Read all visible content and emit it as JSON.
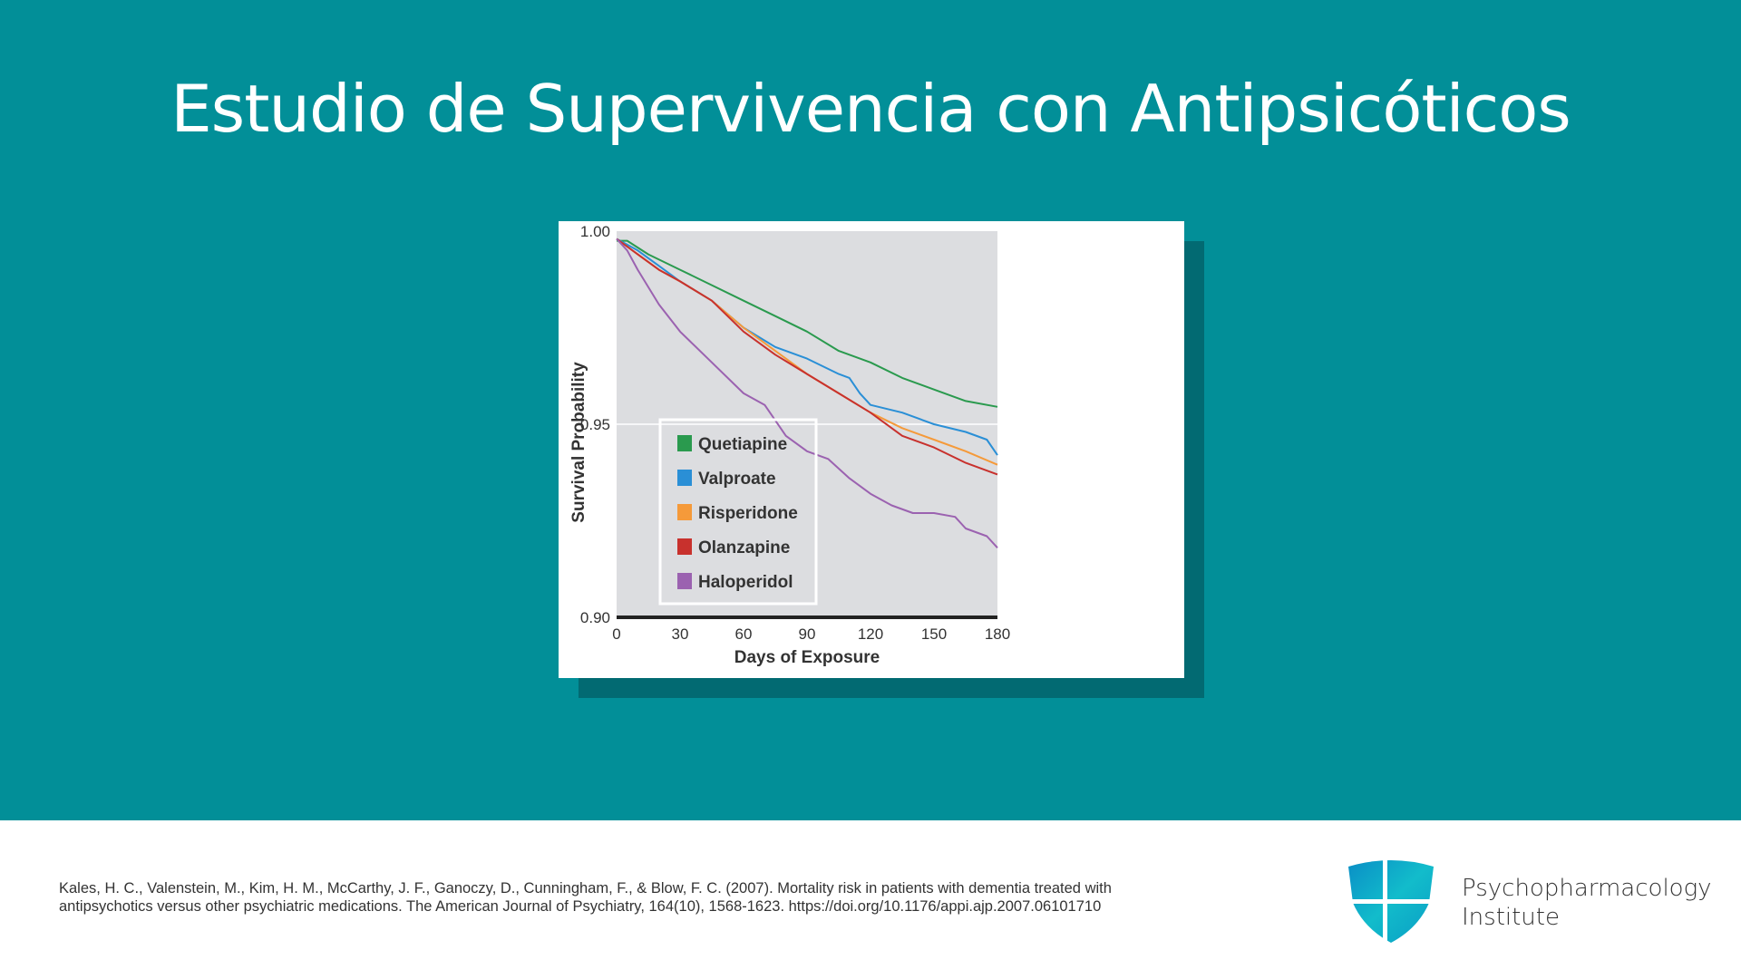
{
  "title": "Estudio de Supervivencia con Antipsicóticos",
  "chart_data": {
    "type": "line",
    "title": "",
    "xlabel": "Days of Exposure",
    "ylabel": "Survival Probability",
    "xlim": [
      0,
      180
    ],
    "ylim": [
      0.9,
      1.0
    ],
    "xticks": [
      "0",
      "30",
      "60",
      "90",
      "120",
      "150",
      "180"
    ],
    "yticks": [
      "1.00",
      "0.95",
      "0.90"
    ],
    "legend_position": "bottom-left",
    "series": [
      {
        "name": "Quetiapine",
        "color": "#2a9a4e",
        "points": [
          [
            0,
            0.9975
          ],
          [
            5,
            0.9975
          ],
          [
            15,
            0.994
          ],
          [
            30,
            0.99
          ],
          [
            45,
            0.986
          ],
          [
            60,
            0.982
          ],
          [
            75,
            0.978
          ],
          [
            90,
            0.974
          ],
          [
            105,
            0.969
          ],
          [
            120,
            0.966
          ],
          [
            135,
            0.962
          ],
          [
            150,
            0.959
          ],
          [
            165,
            0.956
          ],
          [
            180,
            0.9545
          ]
        ]
      },
      {
        "name": "Valproate",
        "color": "#2a8fd6",
        "points": [
          [
            0,
            0.998
          ],
          [
            10,
            0.995
          ],
          [
            20,
            0.991
          ],
          [
            30,
            0.987
          ],
          [
            45,
            0.982
          ],
          [
            60,
            0.975
          ],
          [
            75,
            0.97
          ],
          [
            90,
            0.967
          ],
          [
            105,
            0.963
          ],
          [
            110,
            0.962
          ],
          [
            115,
            0.958
          ],
          [
            120,
            0.955
          ],
          [
            135,
            0.953
          ],
          [
            150,
            0.95
          ],
          [
            165,
            0.948
          ],
          [
            175,
            0.946
          ],
          [
            180,
            0.942
          ]
        ]
      },
      {
        "name": "Risperidone",
        "color": "#f59a3a",
        "points": [
          [
            0,
            0.998
          ],
          [
            10,
            0.994
          ],
          [
            20,
            0.99
          ],
          [
            30,
            0.987
          ],
          [
            45,
            0.982
          ],
          [
            60,
            0.975
          ],
          [
            75,
            0.969
          ],
          [
            90,
            0.963
          ],
          [
            105,
            0.958
          ],
          [
            120,
            0.953
          ],
          [
            135,
            0.949
          ],
          [
            150,
            0.946
          ],
          [
            165,
            0.943
          ],
          [
            180,
            0.9395
          ]
        ]
      },
      {
        "name": "Olanzapine",
        "color": "#c8312d",
        "points": [
          [
            0,
            0.998
          ],
          [
            10,
            0.994
          ],
          [
            20,
            0.99
          ],
          [
            30,
            0.987
          ],
          [
            45,
            0.982
          ],
          [
            60,
            0.974
          ],
          [
            75,
            0.968
          ],
          [
            90,
            0.963
          ],
          [
            105,
            0.958
          ],
          [
            120,
            0.953
          ],
          [
            135,
            0.947
          ],
          [
            150,
            0.944
          ],
          [
            165,
            0.94
          ],
          [
            180,
            0.937
          ]
        ]
      },
      {
        "name": "Haloperidol",
        "color": "#9b62b0",
        "points": [
          [
            0,
            0.998
          ],
          [
            5,
            0.995
          ],
          [
            10,
            0.99
          ],
          [
            20,
            0.981
          ],
          [
            30,
            0.974
          ],
          [
            45,
            0.966
          ],
          [
            60,
            0.958
          ],
          [
            70,
            0.955
          ],
          [
            80,
            0.947
          ],
          [
            90,
            0.943
          ],
          [
            100,
            0.941
          ],
          [
            110,
            0.936
          ],
          [
            120,
            0.932
          ],
          [
            130,
            0.929
          ],
          [
            140,
            0.927
          ],
          [
            150,
            0.927
          ],
          [
            160,
            0.926
          ],
          [
            165,
            0.923
          ],
          [
            175,
            0.921
          ],
          [
            180,
            0.918
          ]
        ]
      }
    ]
  },
  "footer": {
    "citation_line1": "Kales, H. C., Valenstein, M., Kim, H. M., McCarthy, J. F., Ganoczy, D., Cunningham, F., & Blow, F. C. (2007). Mortality risk in patients with dementia treated with",
    "citation_line2": "antipsychotics versus other psychiatric medications. The American Journal of Psychiatry, 164(10), 1568-1623. https://doi.org/10.1176/appi.ajp.2007.06101710",
    "logo_line1": "Psychopharmacology",
    "logo_line2": "Institute"
  }
}
